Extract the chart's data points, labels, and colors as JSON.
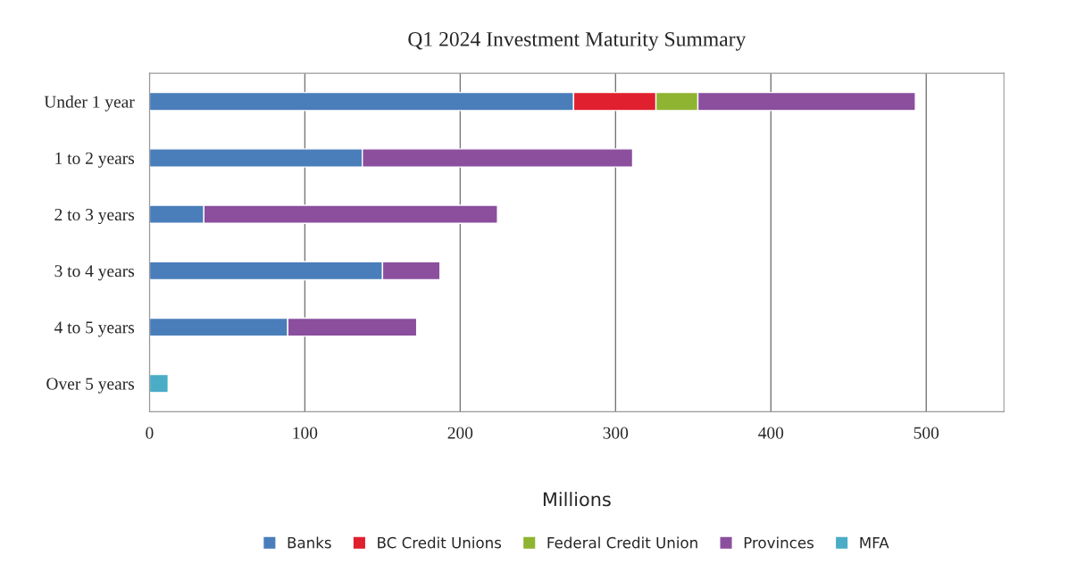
{
  "chart_data": {
    "type": "bar",
    "orientation": "horizontal",
    "stacked": true,
    "title": "Q1 2024 Investment Maturity Summary",
    "xlabel": "Millions",
    "categories": [
      "Under 1 year",
      "1 to 2 years",
      "2 to 3 years",
      "3 to 4 years",
      "4 to 5 years",
      "Over 5 years"
    ],
    "series": [
      {
        "name": "Banks",
        "color": "#4a7ebb",
        "values": [
          273,
          137,
          35,
          150,
          89,
          null
        ]
      },
      {
        "name": "BC Credit Unions",
        "color": "#e0202e",
        "values": [
          53,
          null,
          null,
          null,
          null,
          null
        ]
      },
      {
        "name": "Federal Credit Union",
        "color": "#8fb431",
        "values": [
          27,
          null,
          null,
          null,
          null,
          null
        ]
      },
      {
        "name": "Provinces",
        "color": "#8b4f9e",
        "values": [
          140,
          174,
          189,
          37,
          83,
          null
        ]
      },
      {
        "name": "MFA",
        "color": "#4bacc6",
        "values": [
          null,
          null,
          null,
          null,
          null,
          12
        ]
      }
    ],
    "xlim": [
      0,
      550
    ],
    "xticks": [
      0,
      100,
      200,
      300,
      400,
      500
    ],
    "grid": "x",
    "legend": "bottom"
  }
}
